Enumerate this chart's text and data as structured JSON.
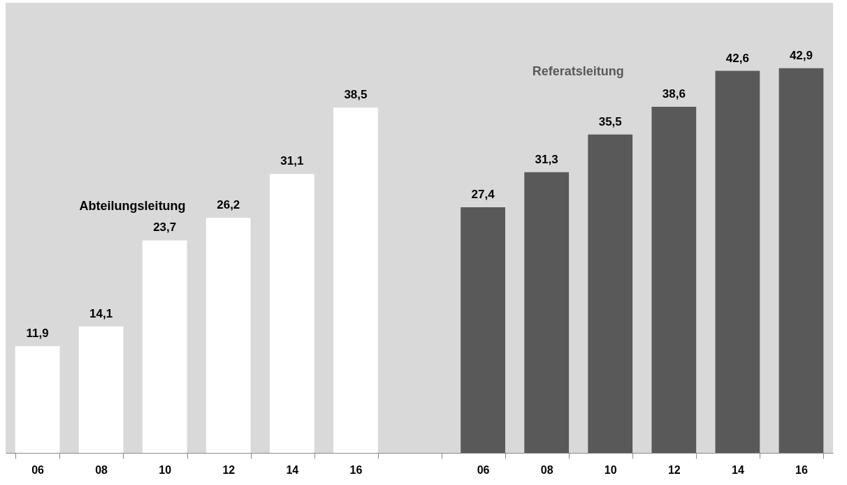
{
  "chart_data": {
    "type": "bar",
    "categories": [
      "06",
      "08",
      "10",
      "12",
      "14",
      "16",
      null,
      "06",
      "08",
      "10",
      "12",
      "14",
      "16"
    ],
    "series": [
      {
        "name": "Abteilungsleitung",
        "color": "#ffffff",
        "values": [
          11.9,
          14.1,
          23.7,
          26.2,
          31.1,
          38.5,
          null,
          null,
          null,
          null,
          null,
          null,
          null
        ],
        "value_labels": [
          "11,9",
          "14,1",
          "23,7",
          "26,2",
          "31,1",
          "38,5",
          null,
          null,
          null,
          null,
          null,
          null,
          null
        ]
      },
      {
        "name": "Referatsleitung",
        "color": "#595959",
        "values": [
          null,
          null,
          null,
          null,
          null,
          null,
          null,
          27.4,
          31.3,
          35.5,
          38.6,
          42.6,
          42.9
        ],
        "value_labels": [
          null,
          null,
          null,
          null,
          null,
          null,
          null,
          "27,4",
          "31,3",
          "35,5",
          "38,6",
          "42,6",
          "42,9"
        ]
      }
    ],
    "grid": false,
    "legend": false,
    "tick_labels": "x"
  }
}
